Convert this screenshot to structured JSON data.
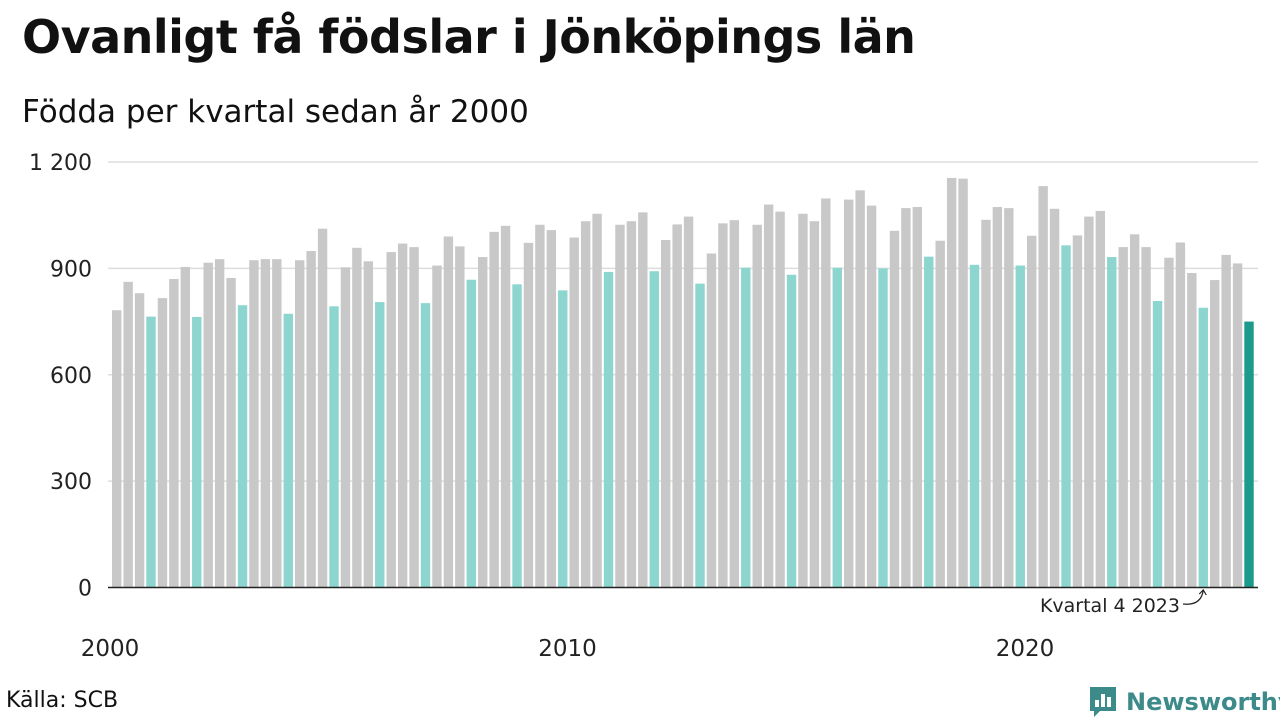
{
  "title": "Ovanligt få födslar i Jönköpings län",
  "subtitle": "Födda per kvartal sedan år 2000",
  "source": "Källa: SCB",
  "brand": "Newsworthy",
  "colors": {
    "other": "#c8c8c8",
    "highlight": "#8dd6cf",
    "latest": "#1c9a8b",
    "grid": "#dddddd",
    "brand": "#3d8a8a"
  },
  "chart_data": {
    "type": "bar",
    "title": "Ovanligt få födslar i Jönköpings län",
    "subtitle": "Födda per kvartal sedan år 2000",
    "ylim": [
      0,
      1200
    ],
    "yticks": [
      0,
      300,
      600,
      900,
      1200
    ],
    "ytick_labels": [
      "0",
      "300",
      "600",
      "900",
      "1 200"
    ],
    "xtick_labels": [
      "2000",
      "2010",
      "2020"
    ],
    "grid": true,
    "start_year": 2000,
    "highlight_quarter": 4,
    "annotation": "Kvartal 4 2023",
    "values": [
      782,
      862,
      830,
      764,
      816,
      870,
      904,
      763,
      916,
      926,
      873,
      796,
      923,
      926,
      926,
      772,
      923,
      949,
      1012,
      793,
      903,
      958,
      920,
      805,
      946,
      970,
      960,
      802,
      908,
      990,
      962,
      868,
      932,
      1003,
      1020,
      855,
      972,
      1023,
      1008,
      838,
      987,
      1033,
      1054,
      890,
      1023,
      1033,
      1058,
      892,
      980,
      1024,
      1046,
      857,
      942,
      1027,
      1036,
      902,
      1023,
      1080,
      1060,
      882,
      1054,
      1033,
      1097,
      902,
      1094,
      1120,
      1077,
      900,
      1006,
      1070,
      1073,
      933,
      978,
      1155,
      1153,
      910,
      1037,
      1073,
      1070,
      908,
      992,
      1132,
      1068,
      965,
      993,
      1046,
      1062,
      932,
      960,
      996,
      960,
      808,
      930,
      973,
      887,
      789,
      867,
      938,
      914,
      750
    ]
  }
}
